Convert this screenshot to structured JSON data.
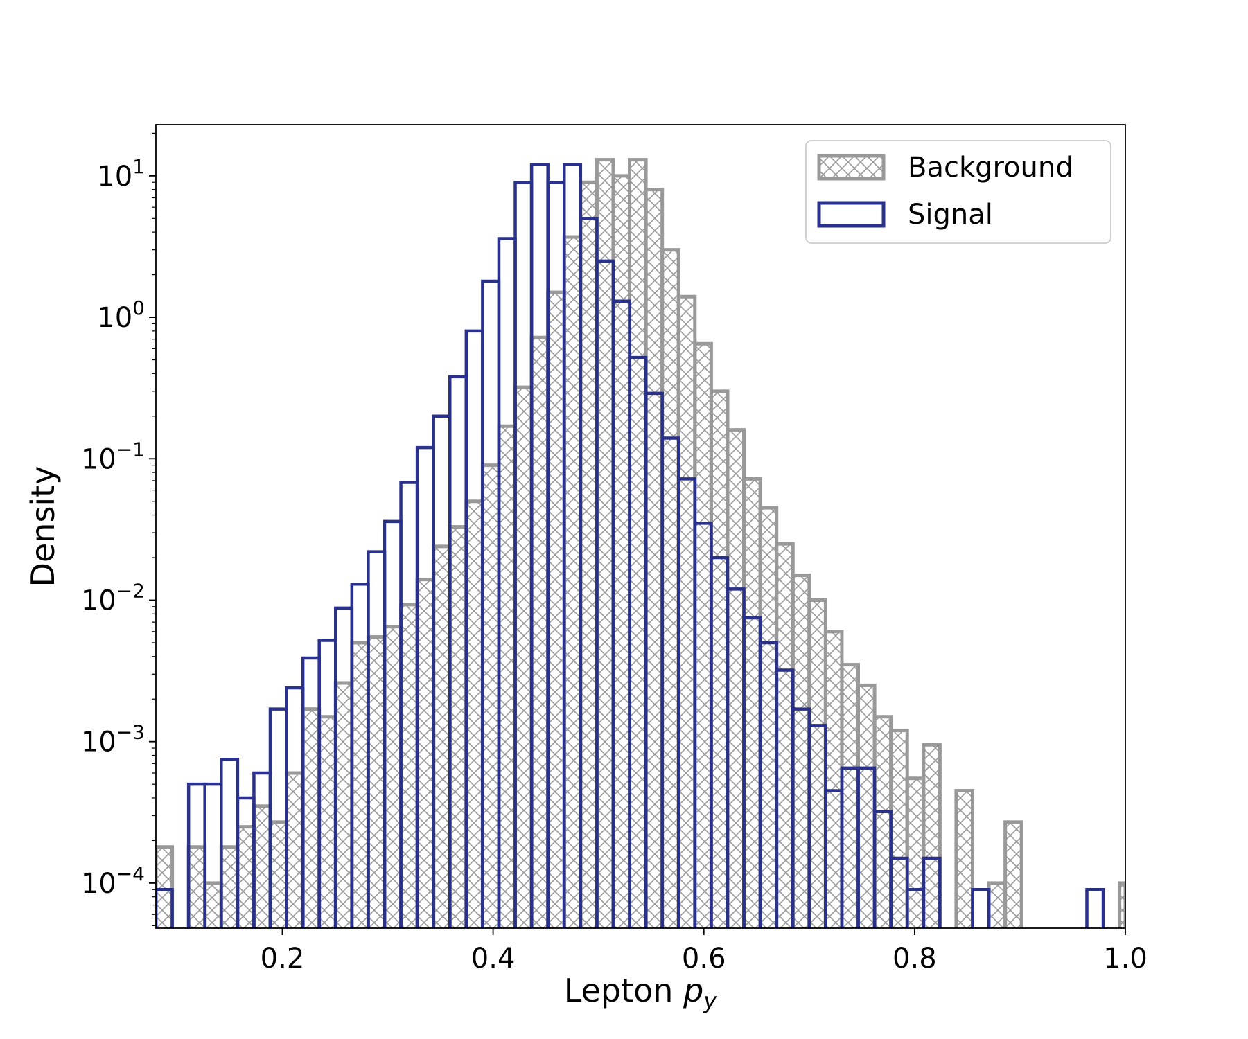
{
  "chart_data": {
    "type": "histogram",
    "xlabel": "Lepton",
    "xlabel_math": "p",
    "xlabel_math_sub": "y",
    "ylabel": "Density",
    "xlim": [
      0.08,
      1.0
    ],
    "ylim": [
      4.8e-05,
      23.0
    ],
    "yscale": "log",
    "grid": false,
    "legend_position": "top-right",
    "x_ticks": [
      {
        "value": 0.2,
        "label": "0.2"
      },
      {
        "value": 0.4,
        "label": "0.4"
      },
      {
        "value": 0.6,
        "label": "0.6"
      },
      {
        "value": 0.8,
        "label": "0.8"
      },
      {
        "value": 1.0,
        "label": "1.0"
      }
    ],
    "y_ticks": [
      {
        "value": 10,
        "base": "10",
        "exp": "1"
      },
      {
        "value": 1,
        "base": "10",
        "exp": "0"
      },
      {
        "value": 0.1,
        "base": "10",
        "exp": "−1"
      },
      {
        "value": 0.01,
        "base": "10",
        "exp": "−2"
      },
      {
        "value": 0.001,
        "base": "10",
        "exp": "−3"
      },
      {
        "value": 0.0001,
        "base": "10",
        "exp": "−4"
      }
    ],
    "bin_edges": [
      0.08,
      0.0955,
      0.111,
      0.1265,
      0.142,
      0.1575,
      0.173,
      0.1885,
      0.204,
      0.2195,
      0.235,
      0.2505,
      0.266,
      0.2815,
      0.297,
      0.3125,
      0.328,
      0.3435,
      0.359,
      0.3745,
      0.39,
      0.4055,
      0.421,
      0.4365,
      0.452,
      0.4675,
      0.483,
      0.4985,
      0.514,
      0.5295,
      0.545,
      0.5605,
      0.576,
      0.5915,
      0.607,
      0.6225,
      0.638,
      0.6535,
      0.669,
      0.6845,
      0.7,
      0.7155,
      0.731,
      0.7465,
      0.762,
      0.7775,
      0.793,
      0.8085,
      0.824,
      0.8395,
      0.855,
      0.8705,
      0.886,
      0.9015,
      0.917,
      0.9325,
      0.948,
      0.9635,
      0.979,
      0.9945,
      1.0
    ],
    "series": [
      {
        "name": "Background",
        "style": "hatched",
        "color": "#999999",
        "values": [
          0.00018,
          0,
          0.00018,
          0.0001,
          0.00018,
          0.00025,
          0.00035,
          0.00027,
          0.0006,
          0.0017,
          0.0015,
          0.0026,
          0.005,
          0.0055,
          0.0065,
          0.0093,
          0.014,
          0.024,
          0.033,
          0.05,
          0.09,
          0.17,
          0.32,
          0.72,
          1.5,
          3.7,
          9,
          13,
          10,
          13,
          8,
          3,
          1.4,
          0.65,
          0.3,
          0.16,
          0.072,
          0.045,
          0.025,
          0.015,
          0.01,
          0.006,
          0.0035,
          0.0025,
          0.0015,
          0.0012,
          0.00055,
          0.00095,
          0,
          0.00045,
          0,
          0.0001,
          0.00027,
          0,
          0,
          0,
          0,
          0,
          0,
          0.0001
        ]
      },
      {
        "name": "Signal",
        "style": "step",
        "color": "#2a318a",
        "values": [
          9e-05,
          0,
          0.0005,
          0.0005,
          0.00075,
          0.0004,
          0.0006,
          0.0017,
          0.0024,
          0.0039,
          0.0052,
          0.0088,
          0.013,
          0.022,
          0.036,
          0.068,
          0.12,
          0.2,
          0.38,
          0.8,
          1.8,
          3.6,
          9,
          12,
          9,
          12,
          5,
          2.5,
          1.3,
          0.52,
          0.29,
          0.14,
          0.072,
          0.035,
          0.02,
          0.012,
          0.0075,
          0.005,
          0.0032,
          0.0017,
          0.0013,
          0.00045,
          0.00065,
          0.00065,
          0.00032,
          0.00015,
          9e-05,
          0.00015,
          0,
          0,
          9e-05,
          0,
          0,
          0,
          0,
          0,
          0,
          9e-05,
          0,
          0
        ]
      }
    ]
  }
}
